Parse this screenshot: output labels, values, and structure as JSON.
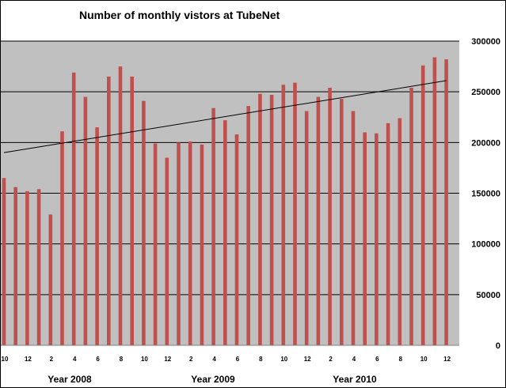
{
  "chart_data": {
    "type": "bar",
    "title": "Number of monthly vistors at TubeNet",
    "xlabel": "",
    "ylabel": "",
    "ylim": [
      0,
      300000
    ],
    "y_ticks": [
      "0",
      "50000",
      "100000",
      "150000",
      "200000",
      "250000",
      "300000"
    ],
    "grid": "horizontal",
    "colors": {
      "bar": "#c0504d",
      "plot_bg": "#c0c0c0",
      "trendline": "#000000"
    },
    "year_labels": [
      "Year 2008",
      "Year 2009",
      "Year 2010"
    ],
    "categories": [
      "10",
      "11",
      "12",
      "1",
      "2",
      "3",
      "4",
      "5",
      "6",
      "7",
      "8",
      "9",
      "10",
      "11",
      "12",
      "1",
      "2",
      "3",
      "4",
      "5",
      "6",
      "7",
      "8",
      "9",
      "10",
      "11",
      "12",
      "1",
      "2",
      "3",
      "4",
      "5",
      "6",
      "7",
      "8",
      "9",
      "10",
      "11",
      "12"
    ],
    "tick_labels": [
      "10",
      "",
      "12",
      "",
      "2",
      "",
      "4",
      "",
      "6",
      "",
      "8",
      "",
      "10",
      "",
      "12",
      "",
      "2",
      "",
      "4",
      "",
      "6",
      "",
      "8",
      "",
      "10",
      "",
      "12",
      "",
      "2",
      "",
      "4",
      "",
      "6",
      "",
      "8",
      "",
      "10",
      "",
      "12"
    ],
    "series": [
      {
        "values": [
          165000,
          156000,
          152000,
          154000,
          129000,
          211000,
          269000,
          245000,
          215000,
          265000,
          275000,
          265000,
          241000,
          199000,
          185000,
          200000,
          201000,
          198000,
          234000,
          222000,
          208000,
          236000,
          248000,
          247000,
          257000,
          259000,
          231000,
          245000,
          254000,
          243000,
          231000,
          210000,
          209000,
          219000,
          224000,
          254000,
          276000,
          284000,
          282000
        ]
      }
    ],
    "trendline": {
      "type": "linear",
      "start": 190000,
      "end": 261000
    }
  }
}
